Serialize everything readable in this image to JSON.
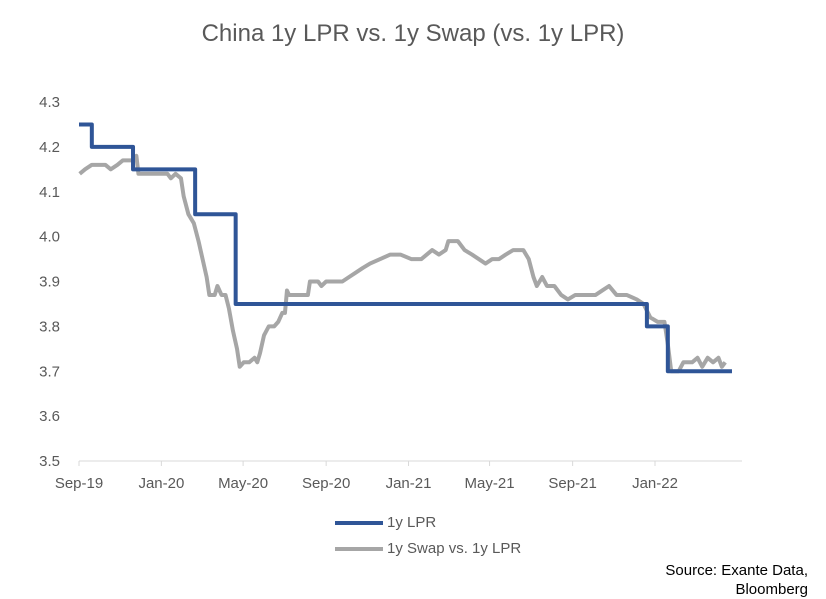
{
  "chart_data": {
    "type": "line",
    "title": "China 1y LPR vs. 1y Swap (vs. 1y LPR)",
    "xlabel": "",
    "ylabel": "",
    "ylim": [
      3.5,
      4.3
    ],
    "yticks": [
      "3.5",
      "3.6",
      "3.7",
      "3.8",
      "3.9",
      "4.0",
      "4.1",
      "4.2",
      "4.3"
    ],
    "xlim": [
      "2019-09-01",
      "2022-05-15"
    ],
    "xticks": [
      {
        "date": "2019-09-01",
        "label": "Sep-19"
      },
      {
        "date": "2020-01-01",
        "label": "Jan-20"
      },
      {
        "date": "2020-05-01",
        "label": "May-20"
      },
      {
        "date": "2020-09-01",
        "label": "Sep-20"
      },
      {
        "date": "2021-01-01",
        "label": "Jan-21"
      },
      {
        "date": "2021-05-01",
        "label": "May-21"
      },
      {
        "date": "2021-09-01",
        "label": "Sep-21"
      },
      {
        "date": "2022-01-01",
        "label": "Jan-22"
      }
    ],
    "grid": false,
    "legend_position": "bottom",
    "series": [
      {
        "name": "1y LPR",
        "color": "#2F5597",
        "step": true,
        "points": [
          [
            "2019-09-01",
            4.25
          ],
          [
            "2019-09-20",
            4.2
          ],
          [
            "2019-11-20",
            4.15
          ],
          [
            "2020-02-20",
            4.05
          ],
          [
            "2020-04-20",
            3.85
          ],
          [
            "2021-12-20",
            3.8
          ],
          [
            "2022-01-20",
            3.7
          ],
          [
            "2022-04-25",
            3.7
          ]
        ]
      },
      {
        "name": "1y Swap vs. 1y LPR",
        "color": "#A6A6A6",
        "step": false,
        "points": [
          [
            "2019-09-02",
            4.14
          ],
          [
            "2019-09-10",
            4.15
          ],
          [
            "2019-09-20",
            4.16
          ],
          [
            "2019-10-10",
            4.16
          ],
          [
            "2019-10-18",
            4.15
          ],
          [
            "2019-10-28",
            4.16
          ],
          [
            "2019-11-05",
            4.17
          ],
          [
            "2019-11-20",
            4.17
          ],
          [
            "2019-11-25",
            4.18
          ],
          [
            "2019-11-28",
            4.14
          ],
          [
            "2019-12-10",
            4.14
          ],
          [
            "2020-01-10",
            4.14
          ],
          [
            "2020-01-15",
            4.13
          ],
          [
            "2020-01-22",
            4.14
          ],
          [
            "2020-01-30",
            4.13
          ],
          [
            "2020-02-03",
            4.09
          ],
          [
            "2020-02-10",
            4.05
          ],
          [
            "2020-02-18",
            4.03
          ],
          [
            "2020-02-25",
            3.99
          ],
          [
            "2020-03-02",
            3.95
          ],
          [
            "2020-03-08",
            3.91
          ],
          [
            "2020-03-12",
            3.87
          ],
          [
            "2020-03-20",
            3.87
          ],
          [
            "2020-03-24",
            3.89
          ],
          [
            "2020-03-30",
            3.87
          ],
          [
            "2020-04-05",
            3.87
          ],
          [
            "2020-04-10",
            3.84
          ],
          [
            "2020-04-16",
            3.79
          ],
          [
            "2020-04-22",
            3.75
          ],
          [
            "2020-04-26",
            3.71
          ],
          [
            "2020-05-02",
            3.72
          ],
          [
            "2020-05-10",
            3.72
          ],
          [
            "2020-05-18",
            3.73
          ],
          [
            "2020-05-22",
            3.72
          ],
          [
            "2020-05-26",
            3.74
          ],
          [
            "2020-06-01",
            3.78
          ],
          [
            "2020-06-08",
            3.8
          ],
          [
            "2020-06-16",
            3.8
          ],
          [
            "2020-06-22",
            3.81
          ],
          [
            "2020-06-28",
            3.83
          ],
          [
            "2020-07-02",
            3.83
          ],
          [
            "2020-07-05",
            3.88
          ],
          [
            "2020-07-08",
            3.87
          ],
          [
            "2020-08-05",
            3.87
          ],
          [
            "2020-08-08",
            3.9
          ],
          [
            "2020-08-20",
            3.9
          ],
          [
            "2020-08-25",
            3.89
          ],
          [
            "2020-09-01",
            3.9
          ],
          [
            "2020-09-25",
            3.9
          ],
          [
            "2020-10-05",
            3.91
          ],
          [
            "2020-10-15",
            3.92
          ],
          [
            "2020-10-25",
            3.93
          ],
          [
            "2020-11-05",
            3.94
          ],
          [
            "2020-11-20",
            3.95
          ],
          [
            "2020-12-05",
            3.96
          ],
          [
            "2020-12-20",
            3.96
          ],
          [
            "2021-01-05",
            3.95
          ],
          [
            "2021-01-20",
            3.95
          ],
          [
            "2021-01-28",
            3.96
          ],
          [
            "2021-02-05",
            3.97
          ],
          [
            "2021-02-15",
            3.96
          ],
          [
            "2021-02-25",
            3.97
          ],
          [
            "2021-03-01",
            3.99
          ],
          [
            "2021-03-15",
            3.99
          ],
          [
            "2021-03-25",
            3.97
          ],
          [
            "2021-04-05",
            3.96
          ],
          [
            "2021-04-15",
            3.95
          ],
          [
            "2021-04-25",
            3.94
          ],
          [
            "2021-05-05",
            3.95
          ],
          [
            "2021-05-15",
            3.95
          ],
          [
            "2021-05-25",
            3.96
          ],
          [
            "2021-06-05",
            3.97
          ],
          [
            "2021-06-20",
            3.97
          ],
          [
            "2021-06-28",
            3.95
          ],
          [
            "2021-07-05",
            3.91
          ],
          [
            "2021-07-10",
            3.89
          ],
          [
            "2021-07-18",
            3.91
          ],
          [
            "2021-07-25",
            3.89
          ],
          [
            "2021-08-05",
            3.89
          ],
          [
            "2021-08-15",
            3.87
          ],
          [
            "2021-08-25",
            3.86
          ],
          [
            "2021-09-05",
            3.87
          ],
          [
            "2021-09-20",
            3.87
          ],
          [
            "2021-10-05",
            3.87
          ],
          [
            "2021-10-15",
            3.88
          ],
          [
            "2021-10-25",
            3.89
          ],
          [
            "2021-11-05",
            3.87
          ],
          [
            "2021-11-20",
            3.87
          ],
          [
            "2021-12-05",
            3.86
          ],
          [
            "2021-12-15",
            3.85
          ],
          [
            "2021-12-25",
            3.82
          ],
          [
            "2022-01-05",
            3.81
          ],
          [
            "2022-01-15",
            3.81
          ],
          [
            "2022-01-20",
            3.76
          ],
          [
            "2022-01-25",
            3.7
          ],
          [
            "2022-02-05",
            3.7
          ],
          [
            "2022-02-12",
            3.72
          ],
          [
            "2022-02-25",
            3.72
          ],
          [
            "2022-03-05",
            3.73
          ],
          [
            "2022-03-12",
            3.71
          ],
          [
            "2022-03-20",
            3.73
          ],
          [
            "2022-03-28",
            3.72
          ],
          [
            "2022-04-05",
            3.73
          ],
          [
            "2022-04-10",
            3.71
          ],
          [
            "2022-04-15",
            3.72
          ]
        ]
      }
    ]
  },
  "source": {
    "line1": "Source: Exante Data,",
    "line2": "Bloomberg"
  }
}
